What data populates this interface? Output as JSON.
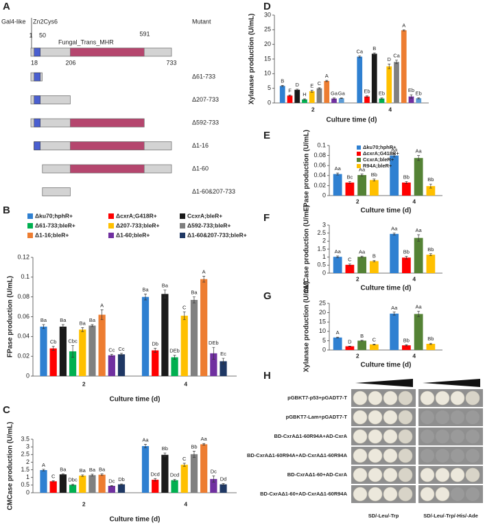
{
  "panel_labels": [
    "A",
    "B",
    "C",
    "D",
    "E",
    "F",
    "G",
    "H"
  ],
  "panel_a": {
    "domain_1": "Gal4-like",
    "domain_2": "Zn2Cys6",
    "domain_3": "Fungal_Trans_MHR",
    "header": "Mutant",
    "positions_top": [
      "1",
      "50",
      "591"
    ],
    "positions_bottom": [
      "18",
      "206",
      "733"
    ],
    "mutants": [
      "Δ61-733",
      "Δ207-733",
      "Δ592-733",
      "Δ1-16",
      "Δ1-60",
      "Δ1-60&207-733"
    ]
  },
  "chart_data": [
    {
      "type": "bar",
      "ylabel": "FPase production (U/mL)",
      "xlabel": "Culture time (d)",
      "categories": [
        "2",
        "4"
      ],
      "ylim": [
        0,
        0.12
      ],
      "yticks": [
        0,
        0.02,
        0.04,
        0.06,
        0.08,
        0.1,
        0.12
      ],
      "legend": "top",
      "series": [
        {
          "name": "Δku70;hphR+",
          "color": "#2f80d1",
          "values": [
            0.05,
            0.08
          ],
          "errors": [
            0.002,
            0.003
          ],
          "letters": [
            "Ba",
            "Ba"
          ]
        },
        {
          "name": "ΔcxrA;G418R+",
          "color": "#ff0000",
          "values": [
            0.028,
            0.026
          ],
          "errors": [
            0.002,
            0.002
          ],
          "letters": [
            "Cb",
            "Db"
          ]
        },
        {
          "name": "CcxrA;bleR+",
          "color": "#1a1a1a",
          "values": [
            0.05,
            0.083
          ],
          "errors": [
            0.002,
            0.004
          ],
          "letters": [
            "Ba",
            "Ba"
          ]
        },
        {
          "name": "Δ61-733;bleR+",
          "color": "#00b050",
          "values": [
            0.025,
            0.019
          ],
          "errors": [
            0.006,
            0.002
          ],
          "letters": [
            "Cbc",
            "DEb"
          ]
        },
        {
          "name": "Δ207-733;bleR+",
          "color": "#ffc000",
          "values": [
            0.047,
            0.061
          ],
          "errors": [
            0.002,
            0.004
          ],
          "letters": [
            "Ba",
            "C"
          ]
        },
        {
          "name": "Δ592-733;bleR+",
          "color": "#808080",
          "values": [
            0.051,
            0.077
          ],
          "errors": [
            0.001,
            0.003
          ],
          "letters": [
            "Ba",
            "Ba"
          ]
        },
        {
          "name": "Δ1-16;bleR+",
          "color": "#ed7d31",
          "values": [
            0.062,
            0.098
          ],
          "errors": [
            0.005,
            0.003
          ],
          "letters": [
            "A",
            "A"
          ]
        },
        {
          "name": "Δ1-60;bleR+",
          "color": "#7030a0",
          "values": [
            0.021,
            0.023
          ],
          "errors": [
            0.001,
            0.006
          ],
          "letters": [
            "Cc",
            "DEb"
          ]
        },
        {
          "name": "Δ1-60&207-733;bleR+",
          "color": "#1f3864",
          "values": [
            0.022,
            0.015
          ],
          "errors": [
            0.001,
            0.003
          ],
          "letters": [
            "Cc",
            "Ec"
          ]
        }
      ]
    },
    {
      "type": "bar",
      "ylabel": "CMCase production (U/mL)",
      "xlabel": "Culture time (d)",
      "categories": [
        "2",
        "4"
      ],
      "ylim": [
        0,
        3.5
      ],
      "yticks": [
        0,
        0.5,
        1,
        1.5,
        2,
        2.5,
        3,
        3.5
      ],
      "legend": "none",
      "series": [
        {
          "color": "#2f80d1",
          "values": [
            1.48,
            3.05
          ],
          "errors": [
            0.05,
            0.12
          ],
          "letters": [
            "A",
            "Aa"
          ]
        },
        {
          "color": "#ff0000",
          "values": [
            0.75,
            0.85
          ],
          "errors": [
            0.03,
            0.08
          ],
          "letters": [
            "C",
            "Dcd"
          ]
        },
        {
          "color": "#1a1a1a",
          "values": [
            1.2,
            2.48
          ],
          "errors": [
            0.03,
            0.12
          ],
          "letters": [
            "Ba",
            "Bb"
          ]
        },
        {
          "color": "#00b050",
          "values": [
            0.52,
            0.82
          ],
          "errors": [
            0.05,
            0.05
          ],
          "letters": [
            "Dbc",
            "Dcd"
          ]
        },
        {
          "color": "#ffc000",
          "values": [
            1.12,
            1.83
          ],
          "errors": [
            0.05,
            0.1
          ],
          "letters": [
            "Ba",
            "C"
          ]
        },
        {
          "color": "#808080",
          "values": [
            1.15,
            2.52
          ],
          "errors": [
            0.06,
            0.2
          ],
          "letters": [
            "Ba",
            "Bb"
          ]
        },
        {
          "color": "#ed7d31",
          "values": [
            1.18,
            3.17
          ],
          "errors": [
            0.05,
            0.05
          ],
          "letters": [
            "Ba",
            "Aa"
          ]
        },
        {
          "color": "#7030a0",
          "values": [
            0.45,
            0.9
          ],
          "errors": [
            0.03,
            0.2
          ],
          "letters": [
            "Dc",
            "Dc"
          ]
        },
        {
          "color": "#1f3864",
          "values": [
            0.55,
            0.55
          ],
          "errors": [
            0.03,
            0.05
          ],
          "letters": [
            "Db",
            "Dd"
          ]
        }
      ]
    },
    {
      "type": "bar",
      "ylabel": "Xylanase production (U/mL)",
      "xlabel": "Culture time (d)",
      "categories": [
        "2",
        "4"
      ],
      "ylim": [
        0,
        30
      ],
      "yticks": [
        0,
        5,
        10,
        15,
        20,
        25,
        30
      ],
      "legend": "none",
      "series": [
        {
          "color": "#2f80d1",
          "values": [
            5.8,
            15.8
          ],
          "errors": [
            0.2,
            0.3
          ],
          "letters": [
            "B",
            "Ca"
          ]
        },
        {
          "color": "#ff0000",
          "values": [
            2.5,
            2.2
          ],
          "errors": [
            0.2,
            0.2
          ],
          "letters": [
            "F",
            "Eb"
          ]
        },
        {
          "color": "#1a1a1a",
          "values": [
            4.5,
            16.8
          ],
          "errors": [
            0.2,
            0.3
          ],
          "letters": [
            "D",
            "B"
          ]
        },
        {
          "color": "#00b050",
          "values": [
            1.2,
            1.5
          ],
          "errors": [
            0.2,
            0.2
          ],
          "letters": [
            "H",
            "Eb"
          ]
        },
        {
          "color": "#ffc000",
          "values": [
            4.0,
            12.5
          ],
          "errors": [
            0.3,
            0.8
          ],
          "letters": [
            "E",
            "D"
          ]
        },
        {
          "color": "#808080",
          "values": [
            5.0,
            14.0
          ],
          "errors": [
            0.2,
            0.6
          ],
          "letters": [
            "C",
            "Ca"
          ]
        },
        {
          "color": "#ed7d31",
          "values": [
            7.5,
            24.8
          ],
          "errors": [
            0.2,
            0.2
          ],
          "letters": [
            "A",
            "A"
          ]
        },
        {
          "color": "#7030a0",
          "values": [
            1.5,
            2.2
          ],
          "errors": [
            0.2,
            0.6
          ],
          "letters": [
            "Ga",
            "Eb"
          ]
        },
        {
          "color": "#5b9bd5",
          "values": [
            1.6,
            1.6
          ],
          "errors": [
            0.1,
            0.2
          ],
          "letters": [
            "Ga",
            "Eb"
          ]
        }
      ]
    },
    {
      "type": "bar",
      "ylabel": "FPase production (U/mL)",
      "xlabel": "Culture time (d)",
      "categories": [
        "2",
        "4"
      ],
      "ylim": [
        0,
        0.1
      ],
      "yticks": [
        0,
        0.02,
        0.04,
        0.06,
        0.08,
        0.1
      ],
      "legend": "upper left",
      "series": [
        {
          "name": "Δku70;hphR+",
          "color": "#2f80d1",
          "values": [
            0.043,
            0.08
          ],
          "errors": [
            0.002,
            0.003
          ],
          "letters": [
            "Aa",
            "Aa"
          ]
        },
        {
          "name": "ΔcxrA;G418R+",
          "color": "#ff0000",
          "values": [
            0.026,
            0.026
          ],
          "errors": [
            0.002,
            0.002
          ],
          "letters": [
            "Bc",
            "Bb"
          ]
        },
        {
          "name": "CcxrA;bleR+",
          "color": "#548235",
          "values": [
            0.041,
            0.075
          ],
          "errors": [
            0.002,
            0.005
          ],
          "letters": [
            "Aa",
            "Aa"
          ]
        },
        {
          "name": "R94A;bleR+",
          "color": "#ffc000",
          "values": [
            0.031,
            0.019
          ],
          "errors": [
            0.002,
            0.004
          ],
          "letters": [
            "Bb",
            "Bb"
          ]
        }
      ]
    },
    {
      "type": "bar",
      "ylabel": "CMCase production (U/mL)",
      "xlabel": "Culture time (d)",
      "categories": [
        "2",
        "4"
      ],
      "ylim": [
        0,
        3
      ],
      "yticks": [
        0,
        0.5,
        1,
        1.5,
        2,
        2.5,
        3
      ],
      "legend": "none",
      "series": [
        {
          "color": "#2f80d1",
          "values": [
            1.02,
            2.45
          ],
          "errors": [
            0.05,
            0.06
          ],
          "letters": [
            "Aa",
            "Aa"
          ]
        },
        {
          "color": "#ff0000",
          "values": [
            0.52,
            0.97
          ],
          "errors": [
            0.05,
            0.08
          ],
          "letters": [
            "C",
            "Bb"
          ]
        },
        {
          "color": "#548235",
          "values": [
            1.02,
            2.2
          ],
          "errors": [
            0.04,
            0.2
          ],
          "letters": [
            "Aa",
            "Aa"
          ]
        },
        {
          "color": "#ffc000",
          "values": [
            0.75,
            1.15
          ],
          "errors": [
            0.04,
            0.06
          ],
          "letters": [
            "B",
            "Bb"
          ]
        }
      ]
    },
    {
      "type": "bar",
      "ylabel": "Xylanase production (U/mL)",
      "xlabel": "Culture time (d)",
      "categories": [
        "2",
        "4"
      ],
      "ylim": [
        0,
        25
      ],
      "yticks": [
        0,
        5,
        10,
        15,
        20,
        25
      ],
      "legend": "none",
      "series": [
        {
          "color": "#2f80d1",
          "values": [
            6.7,
            19.5
          ],
          "errors": [
            0.2,
            0.8
          ],
          "letters": [
            "A",
            "Aa"
          ]
        },
        {
          "color": "#ff0000",
          "values": [
            2.0,
            2.5
          ],
          "errors": [
            0.1,
            0.3
          ],
          "letters": [
            "D",
            "Bb"
          ]
        },
        {
          "color": "#548235",
          "values": [
            5.0,
            19.3
          ],
          "errors": [
            0.2,
            1.5
          ],
          "letters": [
            "B",
            "Aa"
          ]
        },
        {
          "color": "#ffc000",
          "values": [
            3.0,
            3.3
          ],
          "errors": [
            0.2,
            0.3
          ],
          "letters": [
            "C",
            "Bb"
          ]
        }
      ]
    }
  ],
  "panel_h": {
    "rows": [
      "pGBKT7-p53+pGADT7-T",
      "pGBKT7-Lam+pGADT7-T",
      "BD-CxrAΔ1-60R94A+AD-CxrA",
      "BD-CxrAΔ1-60R94A+AD-CxrAΔ1-60R94A",
      "BD-CxrAΔ1-60+AD-CxrA",
      "BD-CxrAΔ1-60+AD-CxrAΔ1-60R94A"
    ],
    "plates": [
      "SD/-Leu/-Trp",
      "SD/-Leu/-Trp/-His/-Ade"
    ]
  }
}
